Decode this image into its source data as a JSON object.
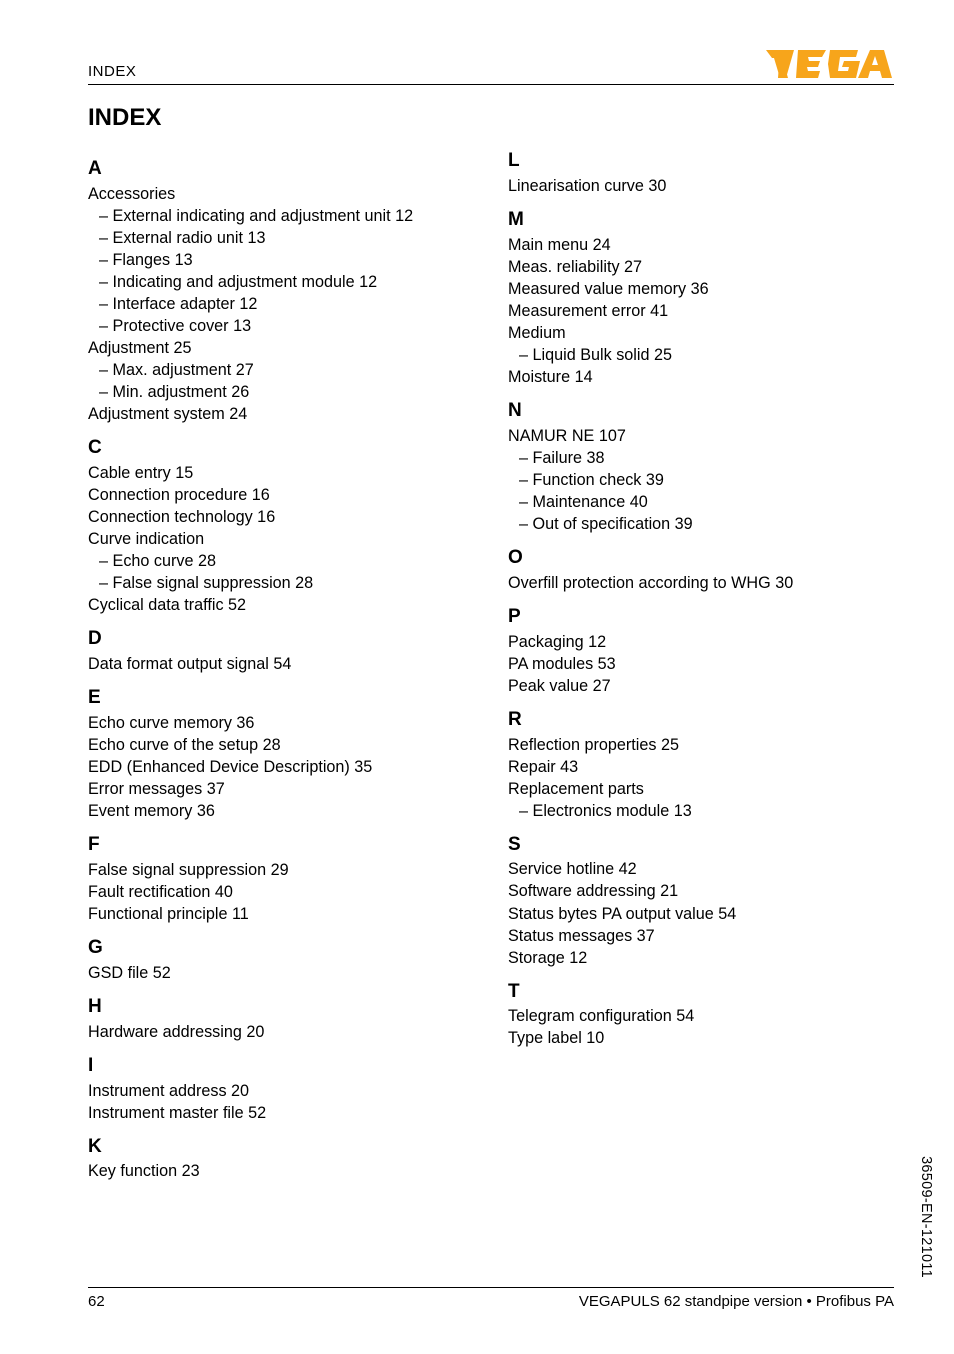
{
  "header": {
    "section": "INDEX",
    "logo_letters": [
      "V",
      "E",
      "G",
      "A"
    ],
    "logo_color": "#f39c12"
  },
  "title": "INDEX",
  "index": [
    {
      "letter": "A",
      "items": [
        {
          "t": "Accessories",
          "subs": [
            "External indicating and adjustment unit  12",
            "External radio unit  13",
            "Flanges  13",
            "Indicating and adjustment module  12",
            "Interface adapter  12",
            "Protective cover  13"
          ]
        },
        {
          "t": "Adjustment  25",
          "subs": [
            "Max. adjustment  27",
            "Min. adjustment  26"
          ]
        },
        {
          "t": "Adjustment system  24"
        }
      ]
    },
    {
      "letter": "C",
      "items": [
        {
          "t": "Cable entry  15"
        },
        {
          "t": "Connection procedure  16"
        },
        {
          "t": "Connection technology  16"
        },
        {
          "t": "Curve indication",
          "subs": [
            "Echo curve  28",
            "False signal suppression  28"
          ]
        },
        {
          "t": "Cyclical data traffic  52"
        }
      ]
    },
    {
      "letter": "D",
      "items": [
        {
          "t": "Data format output signal  54"
        }
      ]
    },
    {
      "letter": "E",
      "items": [
        {
          "t": "Echo curve memory  36"
        },
        {
          "t": "Echo curve of the setup  28"
        },
        {
          "t": "EDD (Enhanced Device Description)  35"
        },
        {
          "t": "Error messages  37"
        },
        {
          "t": "Event memory  36"
        }
      ]
    },
    {
      "letter": "F",
      "items": [
        {
          "t": "False signal suppression  29"
        },
        {
          "t": "Fault rectification  40"
        },
        {
          "t": "Functional principle  11"
        }
      ]
    },
    {
      "letter": "G",
      "items": [
        {
          "t": "GSD file  52"
        }
      ]
    },
    {
      "letter": "H",
      "items": [
        {
          "t": "Hardware addressing  20"
        }
      ]
    },
    {
      "letter": "I",
      "items": [
        {
          "t": "Instrument address  20"
        },
        {
          "t": "Instrument master file  52"
        }
      ]
    },
    {
      "letter": "K",
      "items": [
        {
          "t": "Key function  23"
        }
      ]
    },
    {
      "letter": "L",
      "items": [
        {
          "t": "Linearisation curve  30"
        }
      ]
    },
    {
      "letter": "M",
      "items": [
        {
          "t": "Main menu  24"
        },
        {
          "t": "Meas. reliability  27"
        },
        {
          "t": "Measured value memory  36"
        },
        {
          "t": "Measurement error  41"
        },
        {
          "t": "Medium",
          "subs": [
            "Liquid Bulk solid  25"
          ]
        },
        {
          "t": "Moisture  14"
        }
      ]
    },
    {
      "letter": "N",
      "items": [
        {
          "t": "NAMUR NE 107",
          "subs": [
            "Failure  38",
            "Function check  39",
            "Maintenance  40",
            "Out of specification  39"
          ]
        }
      ]
    },
    {
      "letter": "O",
      "items": [
        {
          "t": "Overfill protection according to WHG  30"
        }
      ]
    },
    {
      "letter": "P",
      "items": [
        {
          "t": "Packaging  12"
        },
        {
          "t": "PA modules  53"
        },
        {
          "t": "Peak value  27"
        }
      ]
    },
    {
      "letter": "R",
      "items": [
        {
          "t": "Reflection properties  25"
        },
        {
          "t": "Repair  43"
        },
        {
          "t": "Replacement parts",
          "subs": [
            "Electronics module  13"
          ]
        }
      ]
    },
    {
      "letter": "S",
      "items": [
        {
          "t": "Service hotline  42"
        },
        {
          "t": "Software addressing  21"
        },
        {
          "t": "Status bytes PA output value  54"
        },
        {
          "t": "Status messages  37"
        },
        {
          "t": "Storage  12"
        }
      ]
    },
    {
      "letter": "T",
      "items": [
        {
          "t": "Telegram configuration  54"
        },
        {
          "t": "Type label  10"
        }
      ]
    }
  ],
  "footer": {
    "page": "62",
    "doc": "VEGAPULS 62 standpipe version • Profibus PA"
  },
  "side_code": "36509-EN-121011"
}
